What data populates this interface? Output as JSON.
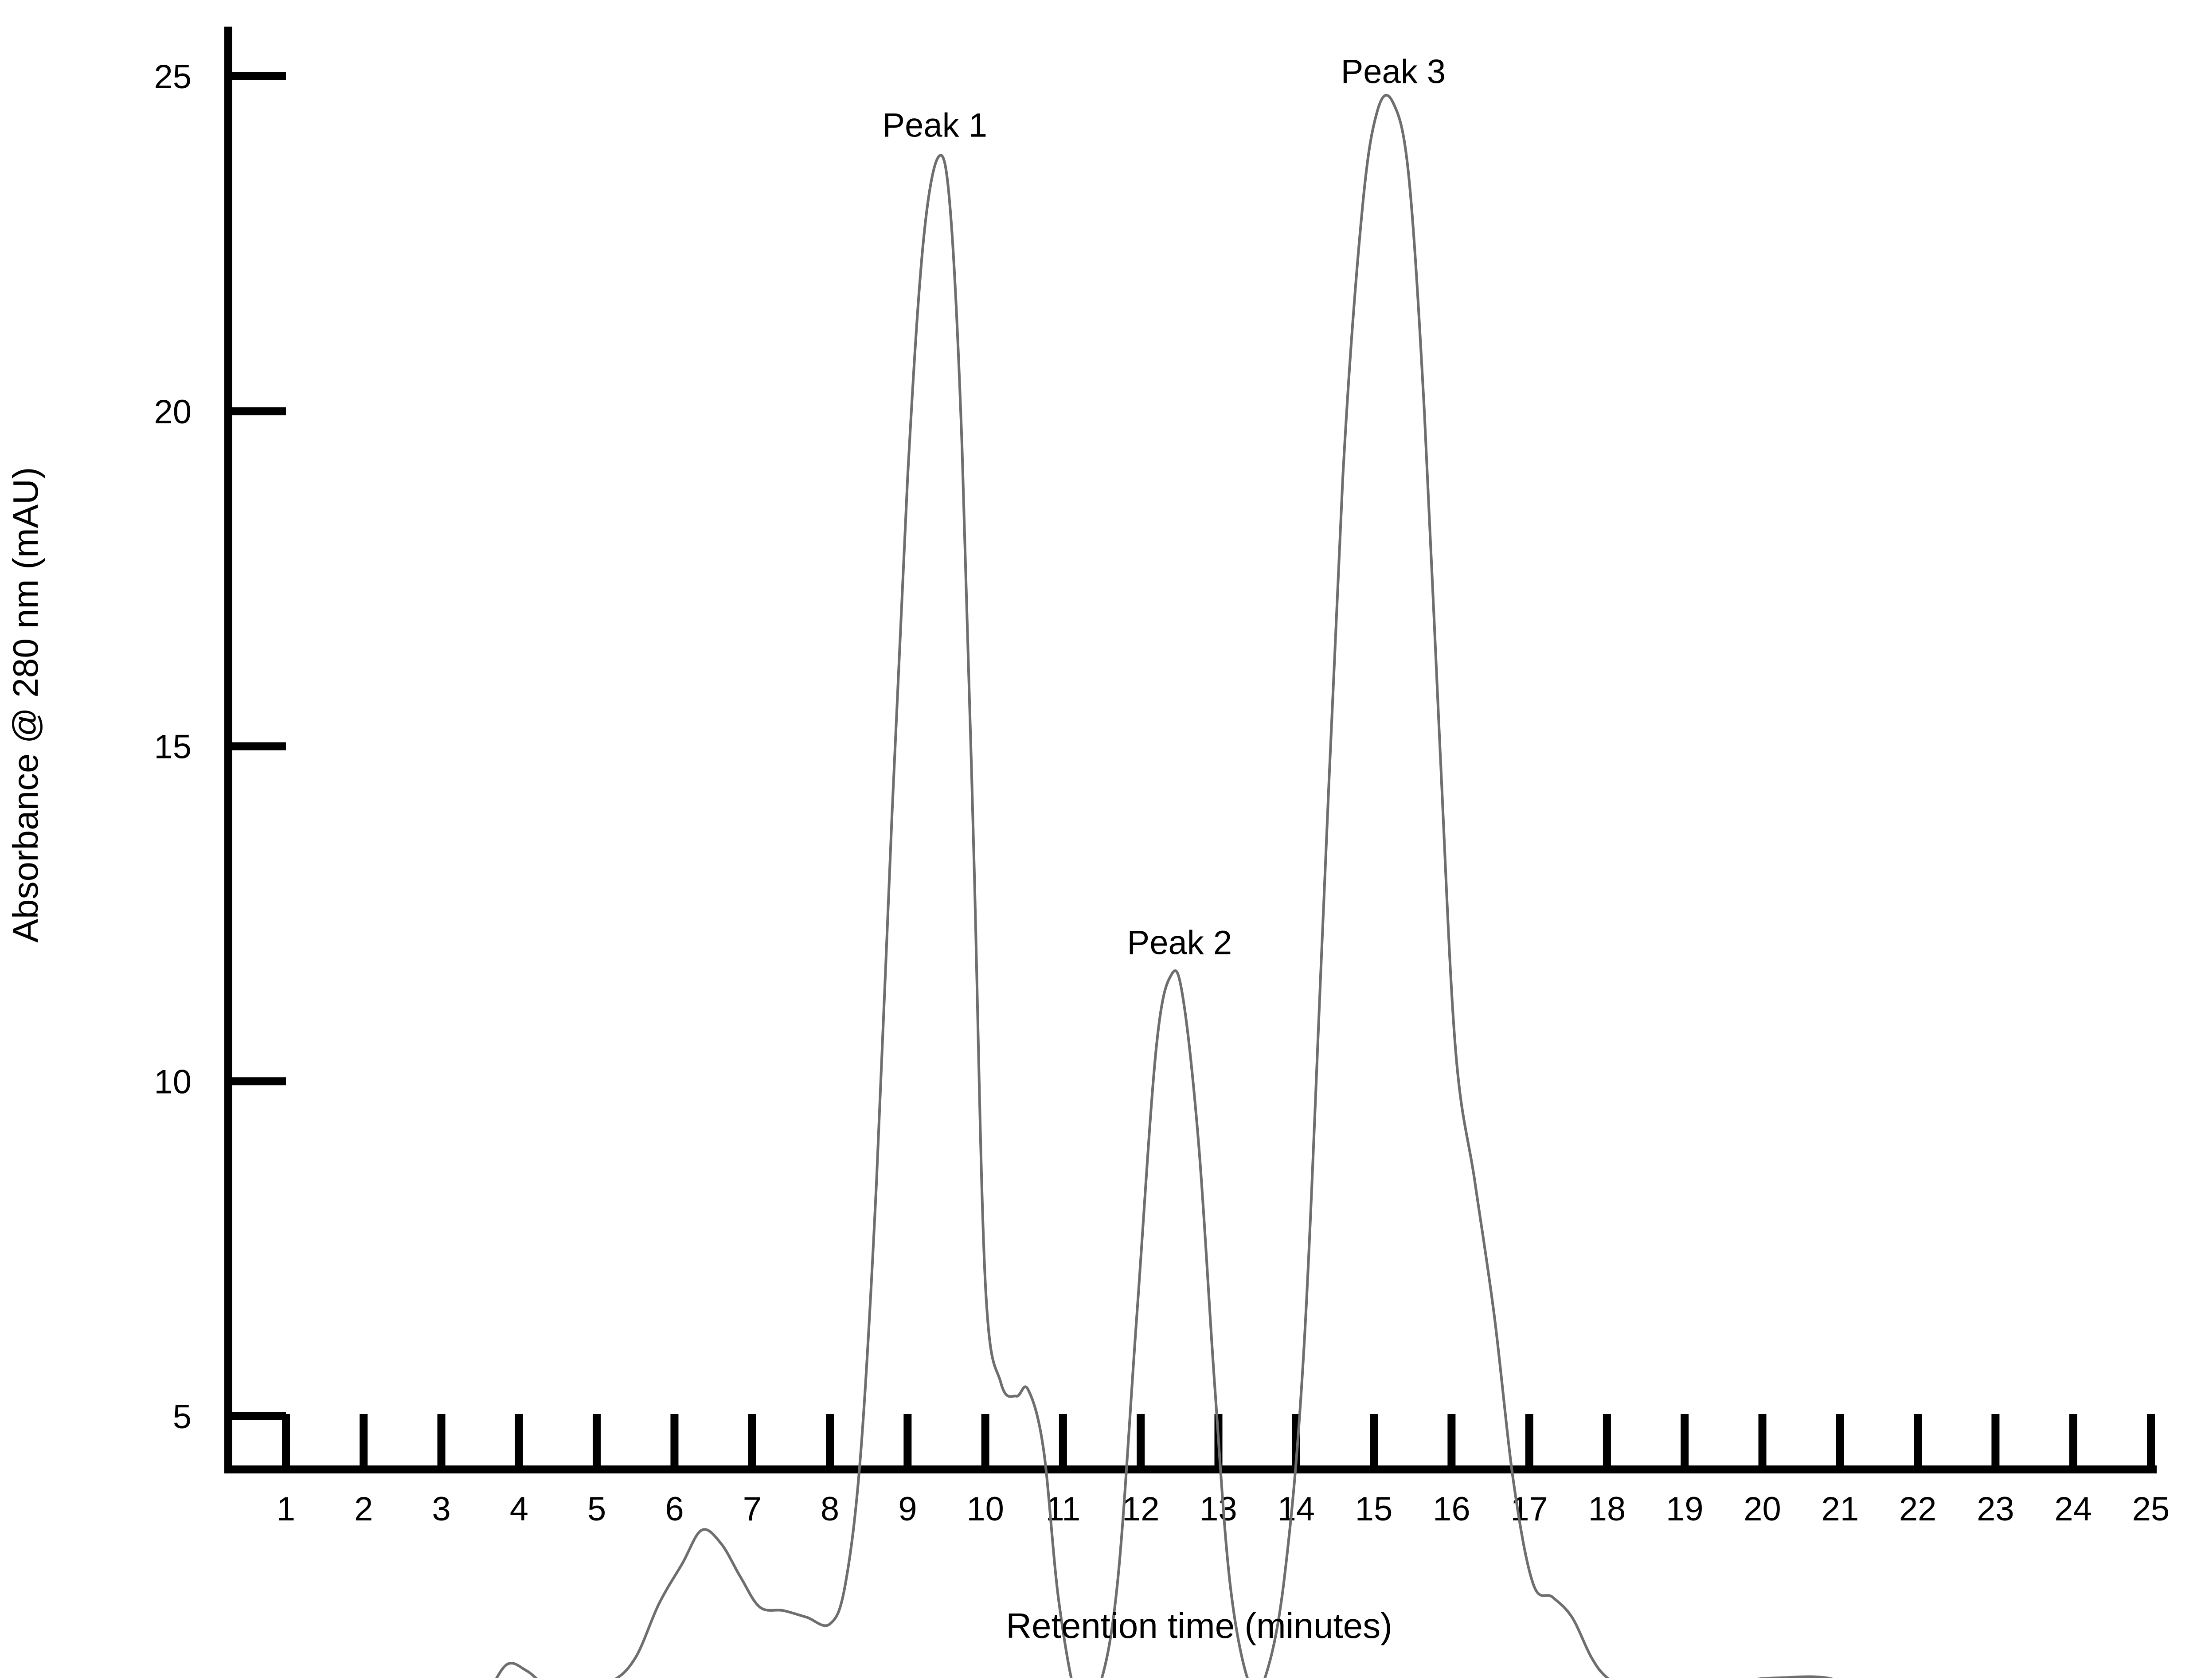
{
  "chart_data": {
    "type": "line",
    "title": "",
    "xlabel": "Retention time (minutes)",
    "ylabel": "Absorbance @ 280 nm (mAU)",
    "xlim": [
      0,
      25
    ],
    "ylim": [
      -1.2,
      26
    ],
    "x_ticks": [
      1,
      2,
      3,
      4,
      5,
      6,
      7,
      8,
      9,
      10,
      11,
      12,
      13,
      14,
      15,
      16,
      17,
      18,
      19,
      20,
      21,
      22,
      23,
      24,
      25
    ],
    "y_ticks": [
      5,
      10,
      15,
      20,
      25
    ],
    "grid": false,
    "legend": "none",
    "line_color": "#6e6e6e",
    "axis_color": "#000000",
    "series": [
      {
        "x": [
          0.0,
          0.7,
          0.72,
          0.76,
          1.0,
          1.5,
          2.0,
          2.5,
          3.0,
          3.3,
          3.6,
          3.85,
          4.1,
          4.4,
          4.8,
          5.2,
          5.5,
          5.8,
          6.1,
          6.35,
          6.6,
          6.85,
          7.1,
          7.4,
          7.7,
          8.0,
          8.2,
          8.4,
          8.6,
          8.8,
          9.0,
          9.2,
          9.4,
          9.55,
          9.7,
          9.85,
          10.0,
          10.2,
          10.4,
          10.55,
          10.75,
          10.95,
          11.2,
          11.45,
          11.7,
          11.95,
          12.2,
          12.4,
          12.55,
          12.75,
          12.95,
          13.15,
          13.4,
          13.6,
          13.85,
          14.1,
          14.35,
          14.6,
          14.85,
          15.05,
          15.25,
          15.45,
          15.65,
          15.85,
          16.05,
          16.3,
          16.55,
          16.8,
          17.05,
          17.3,
          17.55,
          17.8,
          18.0,
          18.3,
          18.6,
          19.0,
          19.4,
          19.8,
          20.3,
          20.8,
          21.3,
          21.8,
          22.1,
          22.12,
          22.6,
          23.2,
          23.8,
          24.3,
          25.0
        ],
        "y": [
          0.0,
          0.0,
          0.5,
          0.7,
          0.75,
          0.85,
          0.8,
          0.7,
          0.55,
          0.6,
          0.9,
          1.3,
          1.2,
          0.95,
          0.95,
          1.05,
          1.4,
          2.2,
          2.8,
          3.3,
          3.1,
          2.6,
          2.15,
          2.1,
          2.0,
          1.9,
          2.5,
          4.5,
          8.5,
          14.0,
          19.0,
          22.5,
          23.8,
          23.0,
          19.5,
          13.5,
          7.0,
          5.5,
          5.3,
          5.4,
          4.5,
          2.2,
          0.7,
          0.9,
          2.5,
          6.5,
          10.5,
          11.6,
          11.2,
          9.0,
          5.5,
          2.5,
          1.0,
          1.1,
          2.6,
          6.0,
          12.5,
          19.0,
          23.0,
          24.5,
          24.6,
          23.5,
          20.0,
          15.0,
          10.5,
          8.5,
          6.5,
          4.0,
          2.5,
          2.3,
          2.0,
          1.4,
          1.1,
          0.9,
          0.7,
          0.75,
          0.85,
          1.05,
          1.1,
          1.1,
          0.95,
          0.85,
          0.85,
          0.7,
          0.75,
          0.7,
          0.7,
          0.72,
          0.7
        ]
      }
    ],
    "annotations": [
      {
        "text": "Peak 1",
        "x": 9.35,
        "y": 23.8
      },
      {
        "text": "Peak 2",
        "x": 12.5,
        "y": 11.6
      },
      {
        "text": "Peak 3",
        "x": 15.25,
        "y": 24.6
      }
    ]
  }
}
